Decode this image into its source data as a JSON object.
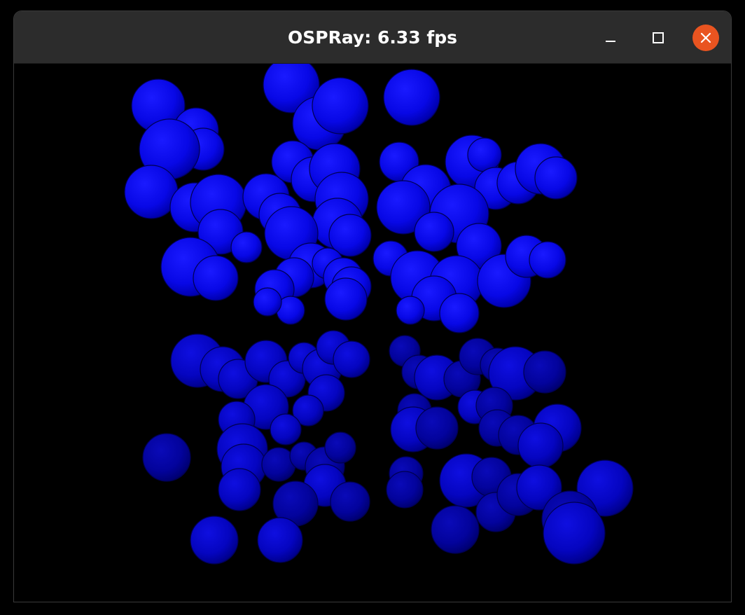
{
  "window": {
    "title": "OSPRay: 6.33 fps"
  },
  "controls": {
    "minimize_icon": "minimize-icon",
    "maximize_icon": "maximize-icon",
    "close_icon": "close-icon",
    "close_color": "#e95420"
  },
  "render": {
    "sphere_color": "#0000ff",
    "background_color": "#000000"
  }
}
